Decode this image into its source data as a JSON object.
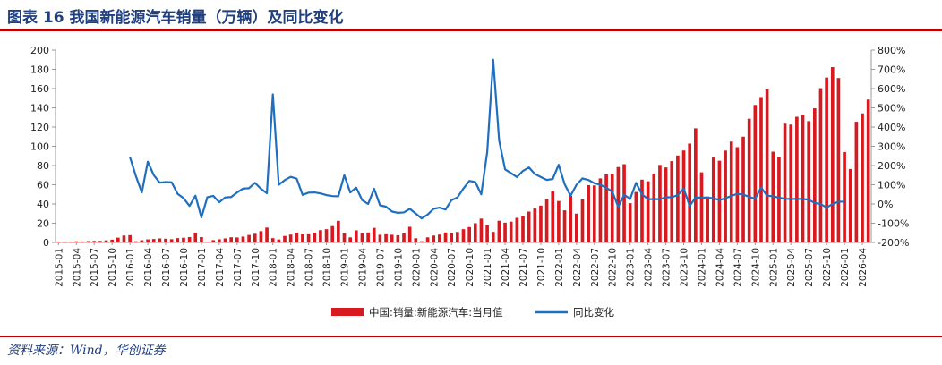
{
  "header": {
    "title": "图表 16    我国新能源汽车销量（万辆）及同比变化"
  },
  "footer": {
    "source": "资料来源：Wind，华创证券"
  },
  "colors": {
    "bar": "#d71920",
    "line": "#1f6fc0",
    "title": "#1f3f7f",
    "rule": "#c00000"
  },
  "chart_data": {
    "type": "bar",
    "grid": false,
    "legend_position": "bottom",
    "y_left": {
      "min": 0,
      "max": 200,
      "ticks": [
        "0",
        "20",
        "40",
        "60",
        "80",
        "100",
        "120",
        "140",
        "160",
        "180",
        "200"
      ]
    },
    "y_right": {
      "min": -200,
      "max": 800,
      "ticks": [
        "-200%",
        "-100%",
        "0%",
        "100%",
        "200%",
        "300%",
        "400%",
        "500%",
        "600%",
        "700%",
        "800%"
      ]
    },
    "x_tick_labels": [
      "2015-01",
      "2015-04",
      "2015-07",
      "2015-10",
      "2016-01",
      "2016-04",
      "2016-07",
      "2016-10",
      "2017-01",
      "2017-04",
      "2017-07",
      "2017-10",
      "2018-01",
      "2018-04",
      "2018-07",
      "2018-10",
      "2019-01",
      "2019-04",
      "2019-07",
      "2019-10",
      "2020-01",
      "2020-04",
      "2020-07",
      "2020-10",
      "2021-01",
      "2021-04",
      "2021-07",
      "2021-10",
      "2022-01",
      "2022-04",
      "2022-07",
      "2022-10",
      "2023-01",
      "2023-04",
      "2023-07",
      "2023-10",
      "2024-01",
      "2024-04",
      "2024-07",
      "2024-10",
      "2025-01",
      "2025-04",
      "2025-07",
      "2025-10",
      "2026-01",
      "2026-04"
    ],
    "start_month": "2015-01",
    "series": [
      {
        "name": "中国:销量:新能源汽车:当月值",
        "type": "bar",
        "axis": "left",
        "values": [
          0.7,
          0.4,
          0.8,
          1.2,
          1.0,
          1.4,
          1.6,
          1.6,
          2.2,
          2.9,
          5.0,
          7.2,
          7.6,
          1.2,
          2.3,
          3.2,
          3.6,
          4.2,
          3.9,
          3.4,
          4.5,
          4.9,
          5.6,
          10.3,
          5.6,
          0.5,
          2.4,
          3.3,
          4.2,
          5.4,
          5.2,
          6.1,
          7.8,
          9.0,
          11.8,
          15.5,
          4.5,
          3.1,
          6.8,
          8.2,
          10.2,
          8.4,
          8.5,
          10.1,
          12.8,
          13.8,
          17.0,
          22.5,
          9.6,
          5.3,
          12.6,
          9.7,
          10.4,
          15.2,
          8.0,
          8.5,
          8.0,
          7.5,
          9.5,
          16.3,
          4.4,
          1.3,
          5.3,
          7.2,
          8.2,
          10.4,
          9.8,
          10.9,
          13.8,
          16.0,
          20.0,
          24.8,
          17.9,
          11.0,
          22.6,
          20.6,
          21.7,
          25.6,
          27.1,
          32.1,
          35.3,
          38.3,
          45.0,
          53.1,
          43.1,
          33.4,
          48.4,
          30.0,
          44.7,
          59.6,
          59.3,
          66.6,
          70.8,
          71.4,
          78.4,
          81.4,
          40.8,
          52.5,
          65.3,
          63.6,
          71.7,
          80.6,
          78.0,
          84.6,
          90.4,
          95.6,
          102.8,
          118.7,
          72.9,
          47.7,
          88.3,
          85.0,
          95.5,
          104.9,
          99.1,
          110.0,
          128.7,
          143.0,
          151.2,
          159.3,
          94.4,
          89.2,
          123.5,
          122.6,
          130.7,
          132.9,
          126.2,
          139.5,
          160.4,
          171.5,
          182.3,
          171.0,
          94.0,
          76.4,
          125.5,
          134.2,
          148.6
        ]
      },
      {
        "name": "同比变化",
        "type": "line",
        "axis": "right",
        "values": [
          null,
          null,
          null,
          null,
          null,
          null,
          null,
          null,
          null,
          null,
          null,
          null,
          244,
          145,
          60,
          220,
          150,
          111,
          114,
          113,
          53,
          30,
          -10,
          43,
          -70,
          35,
          42,
          9,
          34,
          36,
          60,
          80,
          82,
          110,
          79,
          56,
          570,
          100,
          124,
          141,
          132,
          47,
          59,
          60,
          55,
          46,
          41,
          40,
          150,
          60,
          85,
          20,
          0,
          79,
          -7,
          -14,
          -39,
          -46,
          -44,
          -25,
          -50,
          -75,
          -55,
          -25,
          -19,
          -29,
          20,
          34,
          80,
          120,
          114,
          50,
          270,
          750,
          330,
          180,
          160,
          140,
          172,
          190,
          156,
          140,
          125,
          130,
          204,
          103,
          43,
          100,
          133,
          125,
          108,
          100,
          84,
          65,
          -15,
          48,
          26,
          110,
          50,
          25,
          25,
          25,
          35,
          35,
          46,
          80,
          -10,
          33,
          33,
          33,
          30,
          20,
          30,
          42,
          53,
          49,
          37,
          27,
          86,
          43,
          40,
          33,
          27,
          26,
          26,
          26,
          22,
          5,
          0,
          -19,
          0,
          12,
          12
        ]
      }
    ]
  }
}
